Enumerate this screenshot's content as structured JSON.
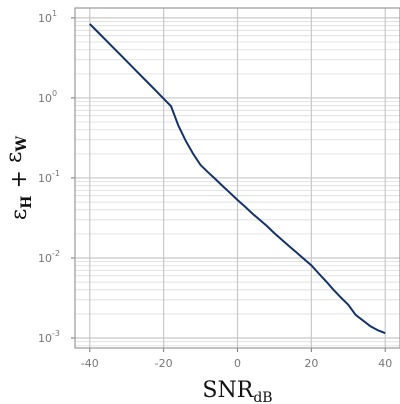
{
  "chart_data": {
    "type": "line",
    "log_y": true,
    "grid": true,
    "minor_grid": true,
    "xlabel": {
      "text": "SNR",
      "sub": "dB"
    },
    "ylabel": [
      {
        "text": "ε",
        "sub": "H"
      },
      {
        "text": " + "
      },
      {
        "text": "ε",
        "sub": "W"
      }
    ],
    "x": [
      -40,
      -38,
      -36,
      -34,
      -32,
      -30,
      -28,
      -26,
      -24,
      -22,
      -20,
      -18,
      -16,
      -14,
      -12,
      -10,
      -8,
      -6,
      -4,
      -2,
      0,
      2,
      4,
      6,
      8,
      10,
      12,
      14,
      16,
      18,
      20,
      22,
      24,
      26,
      28,
      30,
      32,
      34,
      36,
      38,
      40
    ],
    "series": [
      {
        "color": "#12326b",
        "values": [
          8.41,
          6.79,
          5.48,
          4.42,
          3.57,
          2.88,
          2.32,
          1.87,
          1.51,
          1.22,
          0.98,
          0.79,
          0.45,
          0.29,
          0.2,
          0.145,
          0.118,
          0.097,
          0.079,
          0.065,
          0.053,
          0.044,
          0.036,
          0.03,
          0.025,
          0.0204,
          0.0169,
          0.014,
          0.0117,
          0.0097,
          0.0081,
          0.0064,
          0.0051,
          0.004,
          0.0032,
          0.0026,
          0.00194,
          0.00165,
          0.0014,
          0.00125,
          0.00115
        ]
      }
    ],
    "xlim": [
      -44,
      44
    ],
    "xticks": [
      -40,
      -20,
      0,
      20,
      40
    ],
    "ylim": [
      0.00075,
      13.3
    ],
    "yticks": [
      {
        "value": 0.001,
        "label": "10",
        "exponent": "-3"
      },
      {
        "value": 0.01,
        "label": "10",
        "exponent": "-2"
      },
      {
        "value": 0.1,
        "label": "10",
        "exponent": "-1"
      },
      {
        "value": 1,
        "label": "10",
        "exponent": "0"
      },
      {
        "value": 10,
        "label": "10",
        "exponent": "1"
      }
    ]
  }
}
